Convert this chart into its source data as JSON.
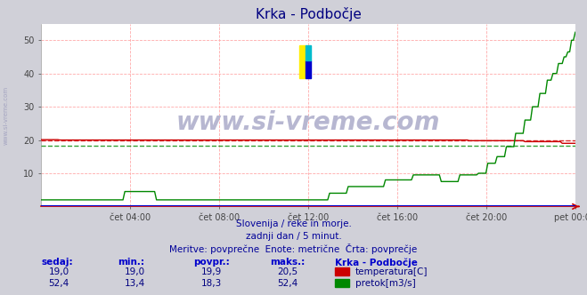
{
  "title": "Krka - Podbočje",
  "title_color": "#000080",
  "bg_color": "#d0d0d8",
  "plot_bg_color": "#ffffff",
  "watermark_text": "www.si-vreme.com",
  "watermark_color": "#b0b0cc",
  "grid_color": "#ffaaaa",
  "x_tick_labels": [
    "čet 04:00",
    "čet 08:00",
    "čet 12:00",
    "čet 16:00",
    "čet 20:00",
    "pet 00:00"
  ],
  "x_tick_positions": [
    0.1667,
    0.3333,
    0.5,
    0.6667,
    0.8333,
    1.0
  ],
  "ylim": [
    0,
    55
  ],
  "yticks": [
    10,
    20,
    30,
    40,
    50
  ],
  "temp_color": "#cc0000",
  "flow_color": "#008800",
  "height_color": "#0000cc",
  "temp_avg_value": 19.9,
  "flow_avg_value": 18.3,
  "subtitle1": "Slovenija / reke in morje.",
  "subtitle2": "zadnji dan / 5 minut.",
  "subtitle3": "Meritve: povprečne  Enote: metrične  Črta: povprečje",
  "subtitle_color": "#000099",
  "table_header_color": "#0000cc",
  "table_value_color": "#000080",
  "n_points": 288
}
